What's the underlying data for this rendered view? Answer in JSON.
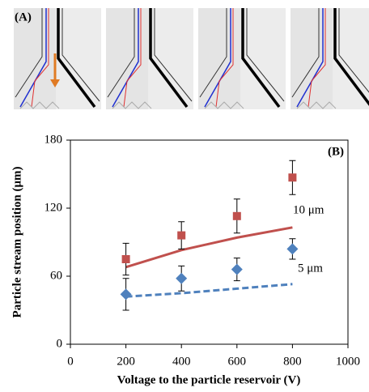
{
  "panel_a_label": "(A)",
  "chart_data": {
    "type": "scatter",
    "panel_label": "(B)",
    "x_label": "Voltage to the particle reservoir (V)",
    "y_label": "Particle stream position (μm)",
    "x": [
      200,
      400,
      600,
      800
    ],
    "series": [
      {
        "name": "10 μm",
        "color": "#c0504d",
        "marker": "square",
        "values": [
          75,
          96,
          113,
          147
        ],
        "errors": [
          14,
          12,
          15,
          15
        ],
        "fit_values": [
          68,
          83,
          94,
          103
        ],
        "fit_dash": false
      },
      {
        "name": "5 μm",
        "color": "#4f81bd",
        "marker": "diamond",
        "values": [
          44,
          58,
          66,
          84
        ],
        "errors": [
          14,
          11,
          10,
          9
        ],
        "fit_values": [
          42,
          45,
          49,
          53
        ],
        "fit_dash": true
      }
    ],
    "xlim": [
      0,
      1000
    ],
    "xticks": [
      0,
      200,
      400,
      600,
      800,
      1000
    ],
    "ylim": [
      0,
      180
    ],
    "yticks": [
      0,
      60,
      120,
      180
    ]
  }
}
